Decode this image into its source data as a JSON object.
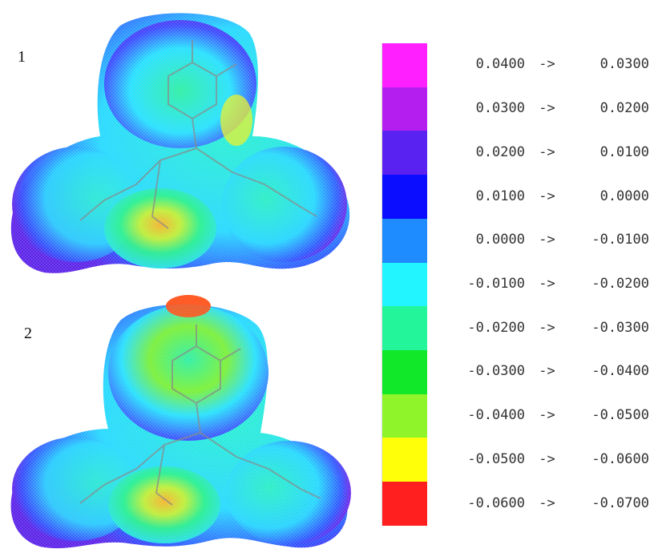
{
  "labels": {
    "molecule_1": "1",
    "molecule_2": "2"
  },
  "color_scale": [
    {
      "from": "0.0400",
      "arrow": "->",
      "to": "0.0300",
      "color": "#ff1fff"
    },
    {
      "from": "0.0300",
      "arrow": "->",
      "to": "0.0200",
      "color": "#b41ff0"
    },
    {
      "from": "0.0200",
      "arrow": "->",
      "to": "0.0100",
      "color": "#5a22f0"
    },
    {
      "from": "0.0100",
      "arrow": "->",
      "to": "0.0000",
      "color": "#0a0dff"
    },
    {
      "from": "0.0000",
      "arrow": "->",
      "to": "-0.0100",
      "color": "#1e8cff"
    },
    {
      "from": "-0.0100",
      "arrow": "->",
      "to": "-0.0200",
      "color": "#22f5ff"
    },
    {
      "from": "-0.0200",
      "arrow": "->",
      "to": "-0.0300",
      "color": "#22f59a"
    },
    {
      "from": "-0.0300",
      "arrow": "->",
      "to": "-0.0400",
      "color": "#12e82a"
    },
    {
      "from": "-0.0400",
      "arrow": "->",
      "to": "-0.0500",
      "color": "#8ff52a"
    },
    {
      "from": "-0.0500",
      "arrow": "->",
      "to": "-0.0600",
      "color": "#ffff0a"
    },
    {
      "from": "-0.0600",
      "arrow": "->",
      "to": "-0.0700",
      "color": "#ff1f1f"
    }
  ]
}
